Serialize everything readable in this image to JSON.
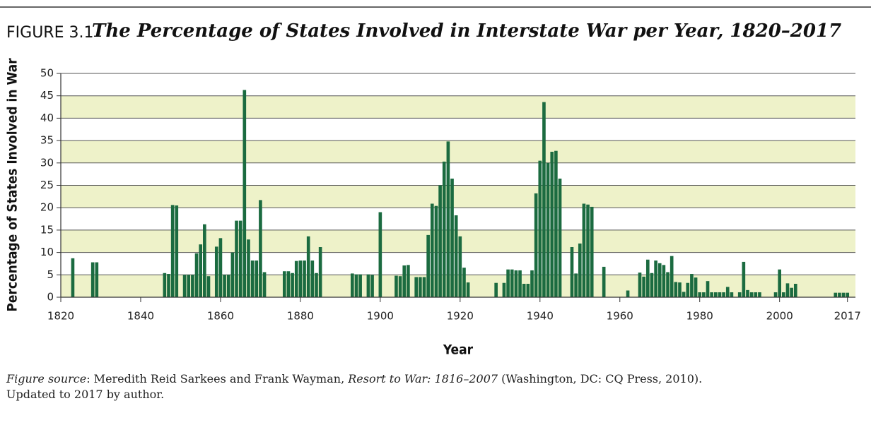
{
  "chart_data": {
    "type": "bar",
    "figure_label": "FIGURE 3.1",
    "title": "The Percentage of States Involved in Interstate War per Year, 1820–2017",
    "x_label": "Year",
    "y_label": "Percentage of States Involved in War",
    "color": "#1b6b40",
    "band_color": "#eef2c9",
    "grid": true,
    "xlim": [
      1820,
      2019
    ],
    "xticks": [
      1820,
      1840,
      1860,
      1880,
      1900,
      1920,
      1940,
      1960,
      1980,
      2000,
      2017
    ],
    "ylim": [
      0,
      50
    ],
    "yticks": [
      0,
      5,
      10,
      15,
      20,
      25,
      30,
      35,
      40,
      45,
      50
    ],
    "x": [
      1823,
      1828,
      1829,
      1846,
      1847,
      1848,
      1849,
      1851,
      1852,
      1853,
      1854,
      1855,
      1856,
      1857,
      1859,
      1860,
      1861,
      1862,
      1863,
      1864,
      1865,
      1866,
      1867,
      1868,
      1869,
      1870,
      1871,
      1876,
      1877,
      1878,
      1879,
      1880,
      1881,
      1882,
      1883,
      1884,
      1885,
      1893,
      1894,
      1895,
      1897,
      1898,
      1900,
      1904,
      1905,
      1906,
      1907,
      1909,
      1910,
      1911,
      1912,
      1913,
      1914,
      1915,
      1916,
      1917,
      1918,
      1919,
      1920,
      1921,
      1922,
      1929,
      1931,
      1932,
      1933,
      1934,
      1935,
      1936,
      1937,
      1938,
      1939,
      1940,
      1941,
      1942,
      1943,
      1944,
      1945,
      1948,
      1949,
      1950,
      1951,
      1952,
      1953,
      1956,
      1962,
      1965,
      1966,
      1967,
      1968,
      1969,
      1970,
      1971,
      1972,
      1973,
      1974,
      1975,
      1976,
      1977,
      1978,
      1979,
      1980,
      1981,
      1982,
      1983,
      1984,
      1985,
      1986,
      1987,
      1988,
      1990,
      1991,
      1992,
      1993,
      1994,
      1995,
      1999,
      2000,
      2001,
      2002,
      2003,
      2004,
      2014,
      2015,
      2016,
      2017
    ],
    "values": [
      8.7,
      7.8,
      7.8,
      5.4,
      5.2,
      20.6,
      20.5,
      5,
      5,
      5,
      9.8,
      11.8,
      16.3,
      4.7,
      11.3,
      13.2,
      5,
      5,
      10,
      17.1,
      17.1,
      46.3,
      12.9,
      8.2,
      8.2,
      21.7,
      5.6,
      5.8,
      5.8,
      5.4,
      8.1,
      8.2,
      8.2,
      13.6,
      8.2,
      5.4,
      11.2,
      5.3,
      5.1,
      5.1,
      5.1,
      5,
      19,
      4.8,
      4.7,
      7.1,
      7.2,
      4.5,
      4.5,
      4.5,
      13.9,
      20.9,
      20.4,
      25,
      30.3,
      34.8,
      26.5,
      18.3,
      13.6,
      6.6,
      3.3,
      3.2,
      3.2,
      6.2,
      6.2,
      6,
      6,
      3,
      3,
      6,
      23.2,
      30.5,
      43.6,
      30,
      32.5,
      32.7,
      26.5,
      11.2,
      5.3,
      12,
      20.9,
      20.7,
      20.2,
      6.8,
      1.5,
      5.5,
      4.6,
      8.4,
      5.4,
      8.2,
      7.6,
      7.2,
      5.6,
      9.2,
      3.4,
      3.3,
      1.2,
      3.2,
      5.2,
      4.4,
      1.1,
      1.1,
      3.6,
      1.1,
      1.1,
      1.1,
      1.1,
      2.3,
      1.1,
      1.1,
      7.9,
      1.6,
      1.1,
      1.1,
      1.1,
      1.1,
      6.2,
      1.1,
      3.1,
      2.1,
      3,
      1,
      1,
      1,
      1
    ]
  },
  "source": [
    "Figure source",
    ": Meredith Reid Sarkees and Frank Wayman, ",
    "Resort to War: 1816–2007",
    " (Washington, DC: CQ Press, 2010).",
    "Updated to 2017 by author."
  ]
}
